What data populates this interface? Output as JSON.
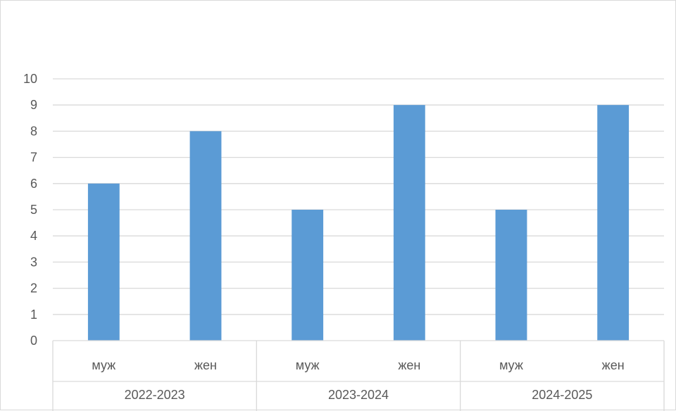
{
  "chart_data": {
    "type": "bar",
    "title": "",
    "xlabel": "",
    "ylabel": "",
    "ylim": [
      0,
      10
    ],
    "yticks": [
      0,
      1,
      2,
      3,
      4,
      5,
      6,
      7,
      8,
      9,
      10
    ],
    "grid": true,
    "legend": "none",
    "groups": [
      {
        "label": "2022-2023",
        "categories": [
          "муж",
          "жен"
        ],
        "values": [
          6,
          8
        ]
      },
      {
        "label": "2023-2024",
        "categories": [
          "муж",
          "жен"
        ],
        "values": [
          5,
          9
        ]
      },
      {
        "label": "2024-2025",
        "categories": [
          "муж",
          "жен"
        ],
        "values": [
          5,
          9
        ]
      }
    ],
    "bar_color": "#5B9BD5",
    "grid_color": "#D9D9D9",
    "text_color": "#595959"
  }
}
